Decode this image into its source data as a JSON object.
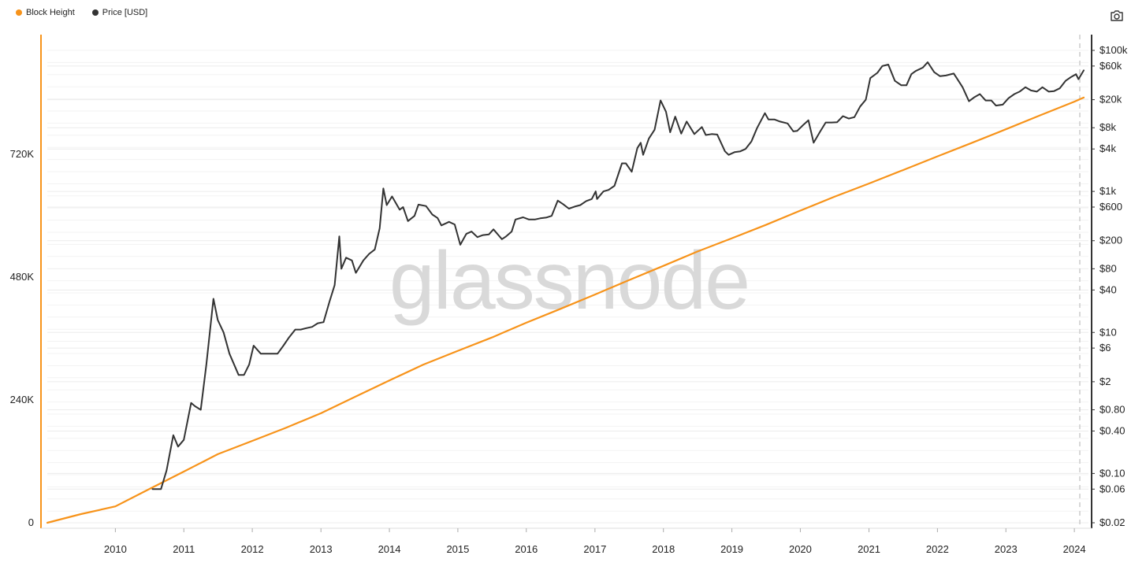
{
  "legend": {
    "block_height_label": "Block Height",
    "price_label": "Price [USD]"
  },
  "watermark": "glassnode",
  "toolbar": {
    "camera_icon": "camera-icon"
  },
  "colors": {
    "block_height": "#f7931a",
    "price": "#333333",
    "left_axis": "#f7931a",
    "right_axis": "#333333",
    "grid": "#ececec",
    "watermark": "#d9d9d9"
  },
  "chart_data": {
    "type": "line",
    "title": "",
    "x_axis": {
      "type": "date",
      "range": [
        "2009-01-03",
        "2024-02-20"
      ],
      "tick_labels": [
        "2010",
        "2011",
        "2012",
        "2013",
        "2014",
        "2015",
        "2016",
        "2017",
        "2018",
        "2019",
        "2020",
        "2021",
        "2022",
        "2023",
        "2024"
      ]
    },
    "y_axis_left": {
      "label": "",
      "scale": "linear",
      "range": [
        0,
        930000
      ],
      "tick_labels": [
        "0",
        "240K",
        "480K",
        "720K"
      ],
      "tick_values": [
        0,
        240000,
        480000,
        720000
      ]
    },
    "y_axis_right": {
      "label": "",
      "scale": "log",
      "range": [
        0.02,
        150000
      ],
      "tick_labels": [
        "$0.02",
        "$0.06",
        "$0.10",
        "$0.40",
        "$0.80",
        "$2",
        "$6",
        "$10",
        "$40",
        "$80",
        "$200",
        "$600",
        "$1k",
        "$4k",
        "$8k",
        "$20k",
        "$60k",
        "$100k"
      ],
      "tick_values": [
        0.02,
        0.06,
        0.1,
        0.4,
        0.8,
        2,
        6,
        10,
        40,
        80,
        200,
        600,
        1000,
        4000,
        8000,
        20000,
        60000,
        100000
      ]
    },
    "grid": true,
    "legend_position": "top-left",
    "series": [
      {
        "name": "Block Height",
        "axis": "left",
        "x": [
          "2009-01-03",
          "2009-07-01",
          "2010-01-01",
          "2010-07-01",
          "2011-01-01",
          "2011-07-01",
          "2012-01-01",
          "2012-07-01",
          "2013-01-01",
          "2013-07-01",
          "2014-01-01",
          "2014-07-01",
          "2015-01-01",
          "2015-07-01",
          "2016-01-01",
          "2016-07-01",
          "2017-01-01",
          "2017-07-01",
          "2018-01-01",
          "2018-07-01",
          "2019-01-01",
          "2019-07-01",
          "2020-01-01",
          "2020-07-01",
          "2021-01-01",
          "2021-07-01",
          "2022-01-01",
          "2022-07-01",
          "2023-01-01",
          "2023-07-01",
          "2024-01-01",
          "2024-02-20"
        ],
        "values": [
          0,
          17000,
          32000,
          66000,
          100000,
          134000,
          160000,
          186000,
          214000,
          246000,
          278000,
          309000,
          336000,
          362000,
          391000,
          418000,
          446000,
          474000,
          502000,
          530000,
          556000,
          582000,
          610000,
          637000,
          663000,
          689000,
          716000,
          742000,
          769000,
          796000,
          823000,
          831000
        ]
      },
      {
        "name": "Price [USD]",
        "axis": "right",
        "x": [
          "2010-07-18",
          "2010-09-01",
          "2010-10-01",
          "2010-11-06",
          "2010-12-01",
          "2011-01-01",
          "2011-02-09",
          "2011-03-01",
          "2011-04-01",
          "2011-05-01",
          "2011-06-08",
          "2011-07-01",
          "2011-08-01",
          "2011-09-01",
          "2011-10-20",
          "2011-11-18",
          "2011-12-15",
          "2012-01-08",
          "2012-02-15",
          "2012-03-15",
          "2012-04-15",
          "2012-05-15",
          "2012-06-15",
          "2012-07-15",
          "2012-08-17",
          "2012-09-15",
          "2012-10-15",
          "2012-11-15",
          "2012-12-15",
          "2013-01-15",
          "2013-02-15",
          "2013-03-15",
          "2013-04-09",
          "2013-04-20",
          "2013-05-15",
          "2013-06-15",
          "2013-07-06",
          "2013-08-15",
          "2013-09-15",
          "2013-10-15",
          "2013-11-10",
          "2013-11-30",
          "2013-12-18",
          "2014-01-15",
          "2014-02-25",
          "2014-03-15",
          "2014-04-10",
          "2014-05-15",
          "2014-06-05",
          "2014-07-15",
          "2014-08-18",
          "2014-09-15",
          "2014-10-05",
          "2014-11-15",
          "2014-12-15",
          "2015-01-14",
          "2015-02-15",
          "2015-03-15",
          "2015-04-15",
          "2015-05-15",
          "2015-06-15",
          "2015-07-10",
          "2015-08-24",
          "2015-09-15",
          "2015-10-15",
          "2015-11-04",
          "2015-12-15",
          "2016-01-15",
          "2016-02-15",
          "2016-03-15",
          "2016-04-15",
          "2016-05-15",
          "2016-06-17",
          "2016-07-15",
          "2016-08-15",
          "2016-09-15",
          "2016-10-15",
          "2016-11-15",
          "2016-12-15",
          "2017-01-05",
          "2017-01-12",
          "2017-02-15",
          "2017-03-15",
          "2017-04-15",
          "2017-05-25",
          "2017-06-15",
          "2017-07-16",
          "2017-08-15",
          "2017-09-02",
          "2017-09-15",
          "2017-10-15",
          "2017-11-15",
          "2017-12-17",
          "2018-01-15",
          "2018-02-06",
          "2018-03-05",
          "2018-04-06",
          "2018-05-05",
          "2018-06-15",
          "2018-07-25",
          "2018-08-15",
          "2018-09-15",
          "2018-10-15",
          "2018-11-25",
          "2018-12-15",
          "2019-01-15",
          "2019-02-15",
          "2019-03-15",
          "2019-04-15",
          "2019-05-15",
          "2019-06-26",
          "2019-07-15",
          "2019-08-15",
          "2019-09-15",
          "2019-10-25",
          "2019-11-25",
          "2019-12-15",
          "2020-01-15",
          "2020-02-13",
          "2020-03-12",
          "2020-04-15",
          "2020-05-15",
          "2020-06-15",
          "2020-07-15",
          "2020-08-15",
          "2020-09-15",
          "2020-10-15",
          "2020-11-15",
          "2020-12-15",
          "2021-01-08",
          "2021-02-15",
          "2021-03-13",
          "2021-04-14",
          "2021-05-19",
          "2021-06-22",
          "2021-07-20",
          "2021-08-15",
          "2021-09-07",
          "2021-10-15",
          "2021-11-10",
          "2021-12-15",
          "2022-01-15",
          "2022-02-15",
          "2022-03-29",
          "2022-04-15",
          "2022-05-15",
          "2022-06-18",
          "2022-07-15",
          "2022-08-15",
          "2022-09-15",
          "2022-10-15",
          "2022-11-09",
          "2022-12-15",
          "2023-01-15",
          "2023-02-15",
          "2023-03-15",
          "2023-04-15",
          "2023-05-15",
          "2023-06-15",
          "2023-07-15",
          "2023-08-18",
          "2023-09-15",
          "2023-10-15",
          "2023-11-15",
          "2023-12-15",
          "2024-01-10",
          "2024-01-23",
          "2024-02-20"
        ],
        "values": [
          0.06,
          0.06,
          0.11,
          0.35,
          0.24,
          0.3,
          1.0,
          0.9,
          0.8,
          3.5,
          30,
          15,
          10,
          5,
          2.5,
          2.5,
          3.5,
          6.5,
          5,
          5,
          5,
          5,
          6.5,
          8.5,
          11,
          11,
          11.5,
          12,
          13.5,
          14,
          27,
          47,
          230,
          80,
          115,
          105,
          70,
          105,
          130,
          150,
          300,
          1100,
          640,
          850,
          550,
          600,
          380,
          450,
          650,
          620,
          470,
          420,
          330,
          370,
          340,
          175,
          250,
          270,
          225,
          240,
          245,
          290,
          210,
          230,
          270,
          400,
          430,
          400,
          400,
          415,
          425,
          450,
          740,
          660,
          570,
          610,
          640,
          730,
          780,
          1000,
          780,
          1000,
          1050,
          1200,
          2500,
          2500,
          1900,
          4100,
          4900,
          3300,
          5600,
          7500,
          19500,
          13500,
          6900,
          11500,
          6600,
          9800,
          6500,
          8200,
          6300,
          6500,
          6400,
          3700,
          3300,
          3600,
          3700,
          4000,
          5100,
          7900,
          12900,
          10500,
          10500,
          9800,
          9200,
          7100,
          7200,
          8700,
          10200,
          4900,
          7000,
          9500,
          9500,
          9600,
          11700,
          10800,
          11300,
          16000,
          20000,
          40500,
          48000,
          60000,
          63000,
          37000,
          32000,
          32000,
          46000,
          51000,
          57000,
          68000,
          49000,
          43000,
          44000,
          47000,
          40000,
          30000,
          19000,
          21500,
          24000,
          19500,
          19500,
          16500,
          17000,
          21000,
          24000,
          26000,
          30000,
          27000,
          26000,
          30000,
          26000,
          26500,
          29000,
          37000,
          42000,
          46000,
          39000,
          52000
        ]
      }
    ]
  }
}
